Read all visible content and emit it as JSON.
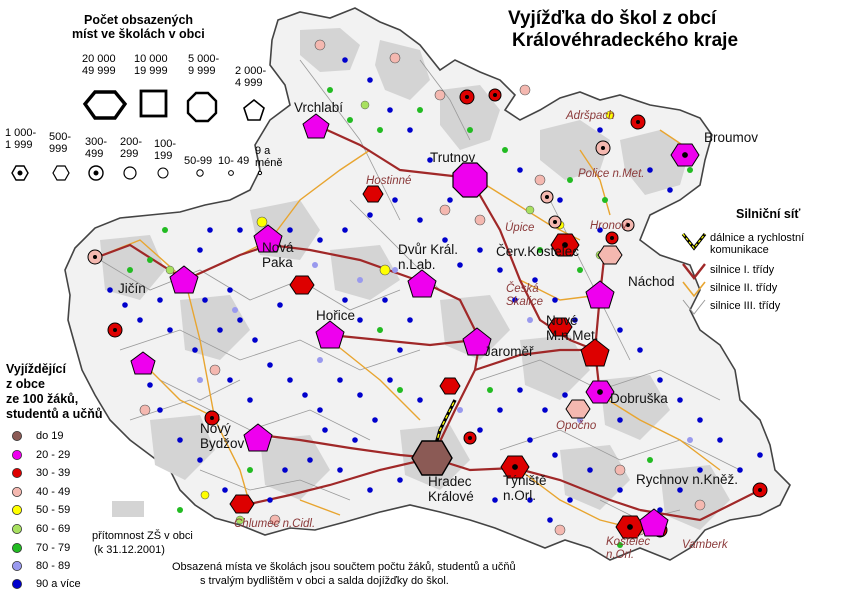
{
  "title": {
    "line1": "Vyjížďka do škol z obcí",
    "line2": "Královéhradeckého kraje"
  },
  "size_legend": {
    "title_line1": "Počet obsazených",
    "title_line2": "míst ve školách v obci",
    "classes": [
      {
        "label": "20 000\n49 999",
        "shape": "hexagon"
      },
      {
        "label": "10 000\n19 999",
        "shape": "square"
      },
      {
        "label": "5 000-\n9 999",
        "shape": "octagon"
      },
      {
        "label": "2 000-\n4 999",
        "shape": "pentagon"
      },
      {
        "label": "1 000-\n1 999",
        "shape": "hexagon-dot"
      },
      {
        "label": "500-\n999",
        "shape": "hexagon-small"
      },
      {
        "label": "300-\n499",
        "shape": "circle-dot"
      },
      {
        "label": "200-\n299",
        "shape": "circle"
      },
      {
        "label": "100-\n199",
        "shape": "circle-small"
      },
      {
        "label": "50-99",
        "shape": "circle-xs"
      },
      {
        "label": "10- 49",
        "shape": "circle-xxs"
      },
      {
        "label": "9 a\nméně",
        "shape": "circle-tiny"
      }
    ]
  },
  "color_legend": {
    "title_line1": "Vyjíždějící",
    "title_line2": "z obce",
    "title_line3": "ze 100 žáků,",
    "title_line4": "studentů a učňů",
    "classes": [
      {
        "label": "do 19",
        "color": "#8b5a55"
      },
      {
        "label": "20 - 29",
        "color": "#ee00ee"
      },
      {
        "label": "30 - 39",
        "color": "#dd0000"
      },
      {
        "label": "40 - 49",
        "color": "#f4b8b0"
      },
      {
        "label": "50 - 59",
        "color": "#ffff00"
      },
      {
        "label": "60 - 69",
        "color": "#a8e060"
      },
      {
        "label": "70 - 79",
        "color": "#22bb22"
      },
      {
        "label": "80 - 89",
        "color": "#9999ee"
      },
      {
        "label": "90 a více",
        "color": "#0000cc"
      }
    ],
    "zs_label_line1": "přítomnost ZŠ v obci",
    "zs_label_line2": "(k 31.12.2001)"
  },
  "road_legend": {
    "title": "Silniční síť",
    "items": [
      {
        "label": "dálnice a rychlostní\nkomunikace",
        "type": "motorway"
      },
      {
        "label": "silnice I. třídy",
        "type": "class1"
      },
      {
        "label": "silnice II. třídy",
        "type": "class2"
      },
      {
        "label": "silnice III. třídy",
        "type": "class3"
      }
    ]
  },
  "footnote": {
    "line1": "Obsazená místa ve školách jsou součtem počtu žáků, studentů a učňů",
    "line2": "s trvalým bydlištěm v obci a salda dojížďky do škol."
  },
  "towns": [
    {
      "name": "Vrchlabí"
    },
    {
      "name": "Trutnov"
    },
    {
      "name": "Broumov"
    },
    {
      "name": "Hostinné"
    },
    {
      "name": "Adršpach"
    },
    {
      "name": "Police n.Met."
    },
    {
      "name": "Úpice"
    },
    {
      "name": "Hronov"
    },
    {
      "name": "Nová\nPaka"
    },
    {
      "name": "Dvůr Král.\nn.Lab."
    },
    {
      "name": "Červ.Kostelec"
    },
    {
      "name": "Náchod"
    },
    {
      "name": "Jičín"
    },
    {
      "name": "Česká\nSkalice"
    },
    {
      "name": "Hořice"
    },
    {
      "name": "Nové\nM.n.Met."
    },
    {
      "name": "Jaroměř"
    },
    {
      "name": "Dobruška"
    },
    {
      "name": "Nový\nBydžov"
    },
    {
      "name": "Opočno"
    },
    {
      "name": "Hradec\nKrálové"
    },
    {
      "name": "Týniště\nn.Orl."
    },
    {
      "name": "Rychnov n.Kněž."
    },
    {
      "name": "Chlumec n.Cidl."
    },
    {
      "name": "Kostelec\nn.Orl."
    },
    {
      "name": "Vamberk"
    }
  ]
}
